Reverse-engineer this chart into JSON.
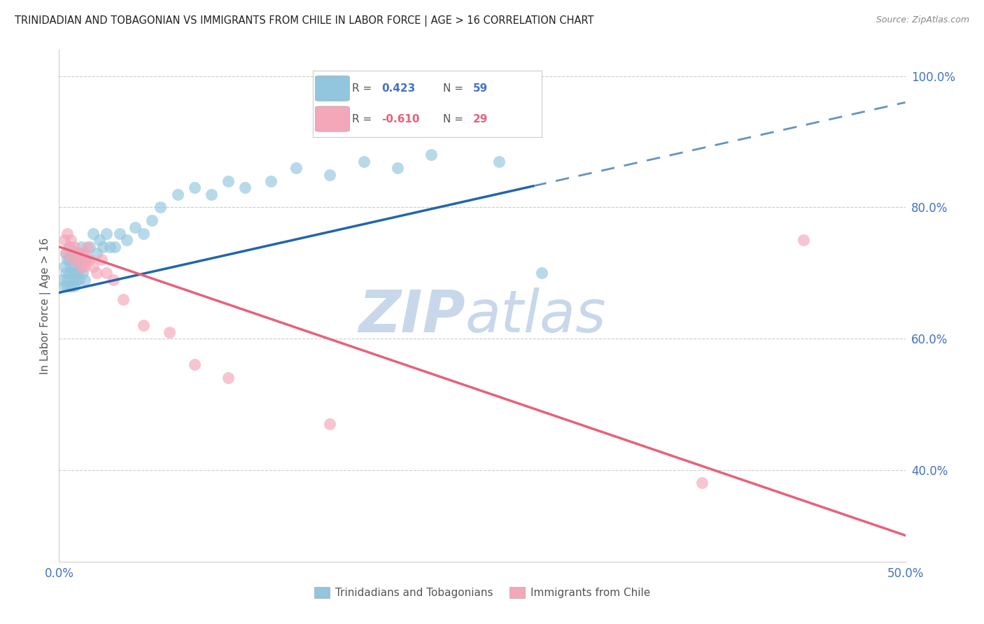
{
  "title": "TRINIDADIAN AND TOBAGONIAN VS IMMIGRANTS FROM CHILE IN LABOR FORCE | AGE > 16 CORRELATION CHART",
  "source": "Source: ZipAtlas.com",
  "ylabel": "In Labor Force | Age > 16",
  "xlim": [
    0.0,
    0.5
  ],
  "ylim": [
    0.26,
    1.04
  ],
  "right_yticks": [
    0.4,
    0.6,
    0.8,
    1.0
  ],
  "right_yticklabels": [
    "40.0%",
    "60.0%",
    "80.0%",
    "100.0%"
  ],
  "xticks": [
    0.0,
    0.1,
    0.2,
    0.3,
    0.4,
    0.5
  ],
  "xticklabels": [
    "0.0%",
    "",
    "",
    "",
    "",
    "50.0%"
  ],
  "blue_color": "#92c5de",
  "pink_color": "#f4a7b9",
  "blue_line_color": "#2166ac",
  "pink_line_color": "#e8607a",
  "blue_scatter_x": [
    0.002,
    0.003,
    0.003,
    0.004,
    0.004,
    0.005,
    0.005,
    0.005,
    0.006,
    0.006,
    0.006,
    0.007,
    0.007,
    0.007,
    0.008,
    0.008,
    0.008,
    0.009,
    0.009,
    0.01,
    0.01,
    0.01,
    0.011,
    0.011,
    0.012,
    0.012,
    0.013,
    0.013,
    0.014,
    0.015,
    0.015,
    0.016,
    0.018,
    0.02,
    0.022,
    0.024,
    0.026,
    0.028,
    0.03,
    0.033,
    0.036,
    0.04,
    0.045,
    0.05,
    0.055,
    0.06,
    0.07,
    0.08,
    0.09,
    0.1,
    0.11,
    0.125,
    0.14,
    0.16,
    0.18,
    0.2,
    0.22,
    0.26,
    0.285
  ],
  "blue_scatter_y": [
    0.69,
    0.71,
    0.68,
    0.73,
    0.7,
    0.72,
    0.69,
    0.68,
    0.74,
    0.7,
    0.72,
    0.68,
    0.71,
    0.73,
    0.7,
    0.69,
    0.72,
    0.68,
    0.71,
    0.7,
    0.69,
    0.72,
    0.73,
    0.7,
    0.72,
    0.69,
    0.74,
    0.71,
    0.7,
    0.73,
    0.69,
    0.72,
    0.74,
    0.76,
    0.73,
    0.75,
    0.74,
    0.76,
    0.74,
    0.74,
    0.76,
    0.75,
    0.77,
    0.76,
    0.78,
    0.8,
    0.82,
    0.83,
    0.82,
    0.84,
    0.83,
    0.84,
    0.86,
    0.85,
    0.87,
    0.86,
    0.88,
    0.87,
    0.7
  ],
  "pink_scatter_x": [
    0.003,
    0.004,
    0.005,
    0.006,
    0.007,
    0.008,
    0.009,
    0.01,
    0.011,
    0.012,
    0.013,
    0.014,
    0.015,
    0.016,
    0.017,
    0.018,
    0.02,
    0.022,
    0.025,
    0.028,
    0.032,
    0.038,
    0.05,
    0.065,
    0.08,
    0.1,
    0.16,
    0.38,
    0.44
  ],
  "pink_scatter_y": [
    0.75,
    0.73,
    0.76,
    0.74,
    0.75,
    0.72,
    0.74,
    0.73,
    0.72,
    0.73,
    0.71,
    0.73,
    0.71,
    0.72,
    0.74,
    0.72,
    0.71,
    0.7,
    0.72,
    0.7,
    0.69,
    0.66,
    0.62,
    0.61,
    0.56,
    0.54,
    0.47,
    0.38,
    0.75
  ],
  "blue_line_start_x": 0.0,
  "blue_line_solid_end_x": 0.28,
  "blue_line_dashed_end_x": 0.5,
  "pink_line_start_x": 0.0,
  "pink_line_end_x": 0.5,
  "watermark_zip": "ZIP",
  "watermark_atlas": "atlas",
  "watermark_color": "#c8d8ea",
  "legend_label_blue": "Trinidadians and Tobagonians",
  "legend_label_pink": "Immigrants from Chile",
  "legend_r_blue": "0.423",
  "legend_n_blue": "59",
  "legend_r_pink": "-0.610",
  "legend_n_pink": "29",
  "legend_text_color": "#555555",
  "legend_value_color_blue": "#4472c4",
  "legend_value_color_pink": "#e8607a"
}
